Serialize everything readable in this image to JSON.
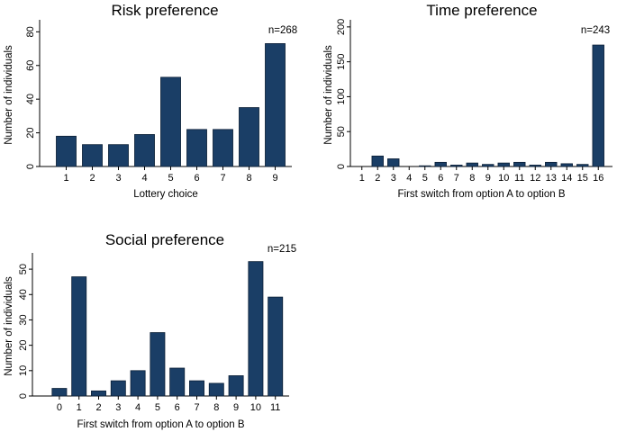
{
  "chart_data": [
    {
      "id": "risk",
      "type": "bar",
      "title": "Risk preference",
      "xlabel": "Lottery choice",
      "ylabel": "Number of individuals",
      "annotation": "n=268",
      "categories": [
        "1",
        "2",
        "3",
        "4",
        "5",
        "6",
        "7",
        "8",
        "9"
      ],
      "values": [
        18,
        13,
        13,
        19,
        53,
        22,
        22,
        35,
        73
      ],
      "ylim": [
        0,
        85
      ],
      "yticks": [
        0,
        20,
        40,
        60,
        80
      ],
      "color": "#1a3e66"
    },
    {
      "id": "time",
      "type": "bar",
      "title": "Time preference",
      "xlabel": "First switch from option A to option B",
      "ylabel": "Number of individuals",
      "annotation": "n=243",
      "categories": [
        "1",
        "2",
        "3",
        "4",
        "5",
        "6",
        "7",
        "8",
        "9",
        "10",
        "11",
        "12",
        "13",
        "14",
        "15",
        "16"
      ],
      "values": [
        0,
        15,
        11,
        0,
        1,
        6,
        2,
        5,
        3,
        5,
        6,
        2,
        6,
        4,
        3,
        174
      ],
      "ylim": [
        0,
        205
      ],
      "yticks": [
        0,
        50,
        100,
        150,
        200
      ],
      "color": "#1a3e66"
    },
    {
      "id": "social",
      "type": "bar",
      "title": "Social preference",
      "xlabel": "First switch from option A to option B",
      "ylabel": "Number of individuals",
      "annotation": "n=215",
      "categories": [
        "0",
        "1",
        "2",
        "3",
        "4",
        "5",
        "6",
        "7",
        "8",
        "9",
        "10",
        "11"
      ],
      "values": [
        3,
        47,
        2,
        6,
        10,
        25,
        11,
        6,
        5,
        8,
        53,
        39
      ],
      "ylim": [
        0,
        55
      ],
      "yticks": [
        0,
        10,
        20,
        30,
        40,
        50
      ],
      "color": "#1a3e66"
    }
  ]
}
